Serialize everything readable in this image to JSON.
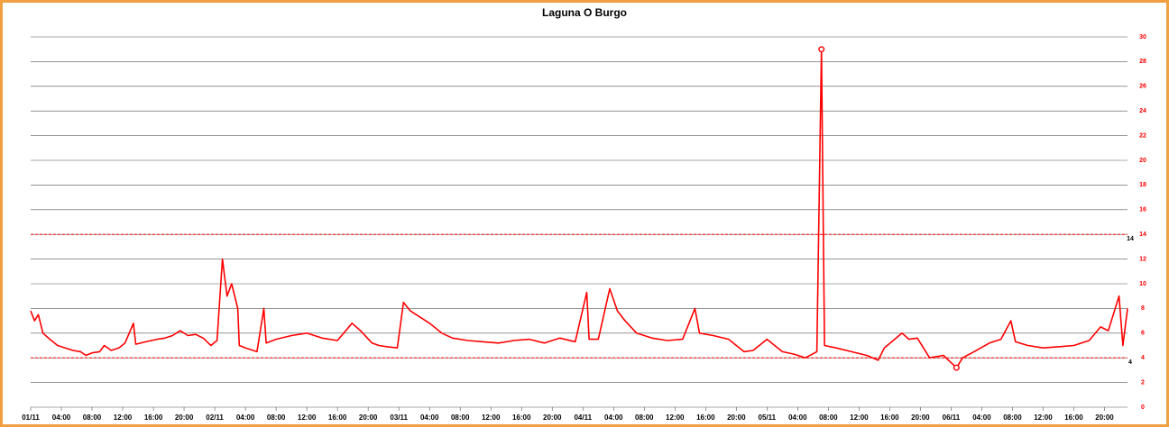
{
  "chart_data": {
    "type": "line",
    "title": "Laguna O Burgo",
    "x": [
      0,
      0.5,
      1,
      1.6,
      2.5,
      3.5,
      4.5,
      5.5,
      6.5,
      7.2,
      8,
      9,
      9.6,
      10.5,
      11.5,
      12.3,
      13.4,
      13.7,
      15,
      16.5,
      17.5,
      18.5,
      19.5,
      20.5,
      21.5,
      22.5,
      23.5,
      24.3,
      25,
      25.6,
      26.2,
      27,
      27.2,
      28,
      29.5,
      30.4,
      30.7,
      32,
      34,
      36,
      38,
      40,
      41.9,
      43,
      44.5,
      45.4,
      46.5,
      47.8,
      48.6,
      49.5,
      50.5,
      52,
      53.6,
      55,
      57,
      59,
      61,
      63,
      65,
      67,
      69,
      71,
      72.5,
      72.8,
      74,
      75.5,
      76.5,
      77.5,
      79,
      81,
      83,
      85,
      86.6,
      87.2,
      89,
      91,
      93,
      94.2,
      96,
      98,
      99.5,
      101,
      102.5,
      103.1,
      103.5,
      105,
      107,
      109,
      110.5,
      111.3,
      113.6,
      114.5,
      115.6,
      117.2,
      119,
      120.7,
      121.5,
      123,
      125,
      126.5,
      127.8,
      128.4,
      130,
      132,
      134,
      136,
      138,
      139.5,
      140.5,
      141.9,
      142.4,
      143
    ],
    "series": [
      {
        "name": "Laguna O Burgo",
        "color": "#ff0000",
        "values": [
          7.8,
          7,
          7.5,
          6,
          5.5,
          5,
          4.8,
          4.6,
          4.5,
          4.2,
          4.4,
          4.5,
          5,
          4.6,
          4.8,
          5.2,
          6.8,
          5.1,
          5.3,
          5.5,
          5.6,
          5.8,
          6.2,
          5.8,
          5.9,
          5.6,
          5,
          5.4,
          12,
          9,
          10,
          8,
          5,
          4.8,
          4.5,
          8,
          5.2,
          5.5,
          5.8,
          6,
          5.6,
          5.4,
          6.8,
          6.2,
          5.2,
          5,
          4.9,
          4.8,
          8.5,
          7.8,
          7.4,
          6.8,
          6,
          5.6,
          5.4,
          5.3,
          5.2,
          5.4,
          5.5,
          5.2,
          5.6,
          5.3,
          9.3,
          5.5,
          5.5,
          9.6,
          7.8,
          7,
          6,
          5.6,
          5.4,
          5.5,
          8,
          6,
          5.8,
          5.5,
          4.5,
          4.6,
          5.5,
          4.5,
          4.3,
          4,
          4.5,
          29,
          5,
          4.8,
          4.5,
          4.2,
          3.8,
          4.8,
          6,
          5.5,
          5.6,
          4,
          4.2,
          3.2,
          4,
          4.5,
          5.2,
          5.5,
          7,
          5.3,
          5,
          4.8,
          4.9,
          5,
          5.4,
          6.5,
          6.2,
          9,
          5,
          8
        ]
      }
    ],
    "markers": [
      {
        "x": 103.1,
        "y": 29
      },
      {
        "x": 120.7,
        "y": 3.2
      }
    ],
    "thresholds": [
      4,
      14
    ],
    "xlim": [
      0,
      143
    ],
    "xticks": [
      {
        "value": 0,
        "label": "01/11"
      },
      {
        "value": 4,
        "label": "04:00"
      },
      {
        "value": 8,
        "label": "08:00"
      },
      {
        "value": 12,
        "label": "12:00"
      },
      {
        "value": 16,
        "label": "16:00"
      },
      {
        "value": 20,
        "label": "20:00"
      },
      {
        "value": 24,
        "label": "02/11"
      },
      {
        "value": 28,
        "label": "04:00"
      },
      {
        "value": 32,
        "label": "08:00"
      },
      {
        "value": 36,
        "label": "12:00"
      },
      {
        "value": 40,
        "label": "16:00"
      },
      {
        "value": 44,
        "label": "20:00"
      },
      {
        "value": 48,
        "label": "03/11"
      },
      {
        "value": 52,
        "label": "04:00"
      },
      {
        "value": 56,
        "label": "08:00"
      },
      {
        "value": 60,
        "label": "12:00"
      },
      {
        "value": 64,
        "label": "16:00"
      },
      {
        "value": 68,
        "label": "20:00"
      },
      {
        "value": 72,
        "label": "04/11"
      },
      {
        "value": 76,
        "label": "04:00"
      },
      {
        "value": 80,
        "label": "08:00"
      },
      {
        "value": 84,
        "label": "12:00"
      },
      {
        "value": 88,
        "label": "16:00"
      },
      {
        "value": 92,
        "label": "20:00"
      },
      {
        "value": 96,
        "label": "05/11"
      },
      {
        "value": 100,
        "label": "04:00"
      },
      {
        "value": 104,
        "label": "08:00"
      },
      {
        "value": 108,
        "label": "12:00"
      },
      {
        "value": 112,
        "label": "16:00"
      },
      {
        "value": 116,
        "label": "20:00"
      },
      {
        "value": 120,
        "label": "06/11"
      },
      {
        "value": 124,
        "label": "04:00"
      },
      {
        "value": 128,
        "label": "08:00"
      },
      {
        "value": 132,
        "label": "12:00"
      },
      {
        "value": 136,
        "label": "16:00"
      },
      {
        "value": 140,
        "label": "20:00"
      }
    ],
    "ylim": [
      0,
      30
    ],
    "yticks": [
      0,
      2,
      4,
      6,
      8,
      10,
      12,
      14,
      16,
      18,
      20,
      22,
      24,
      26,
      28,
      30
    ],
    "grid": true,
    "y_axis_side": "right",
    "threshold_color": "#ff0000",
    "tick_color": "#ff0000"
  }
}
